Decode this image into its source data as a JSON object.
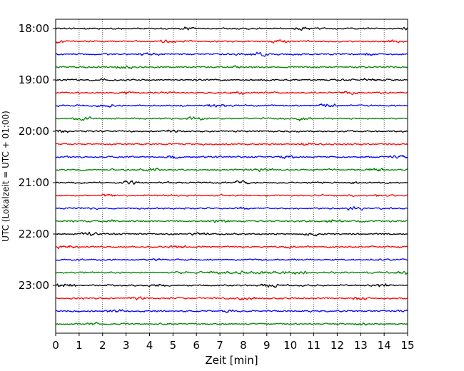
{
  "chart_data": {
    "type": "line",
    "title": "",
    "xlabel": "Zeit  [min]",
    "ylabel": "UTC (Lokalzeit = UTC + 01:00)",
    "xlim": [
      0,
      15
    ],
    "xticks": [
      "0",
      "1",
      "2",
      "3",
      "4",
      "5",
      "6",
      "7",
      "8",
      "9",
      "10",
      "11",
      "12",
      "13",
      "14",
      "15"
    ],
    "yticks": [
      "18:00",
      "19:00",
      "20:00",
      "21:00",
      "22:00",
      "23:00"
    ],
    "grid": "vertical dotted at each minute",
    "legend": "none",
    "trace_interval_minutes": 15,
    "trace_start": "18:00",
    "trace_count": 24,
    "trace_colors": [
      "#000000",
      "#ff0000",
      "#0000ff",
      "#008000"
    ]
  }
}
